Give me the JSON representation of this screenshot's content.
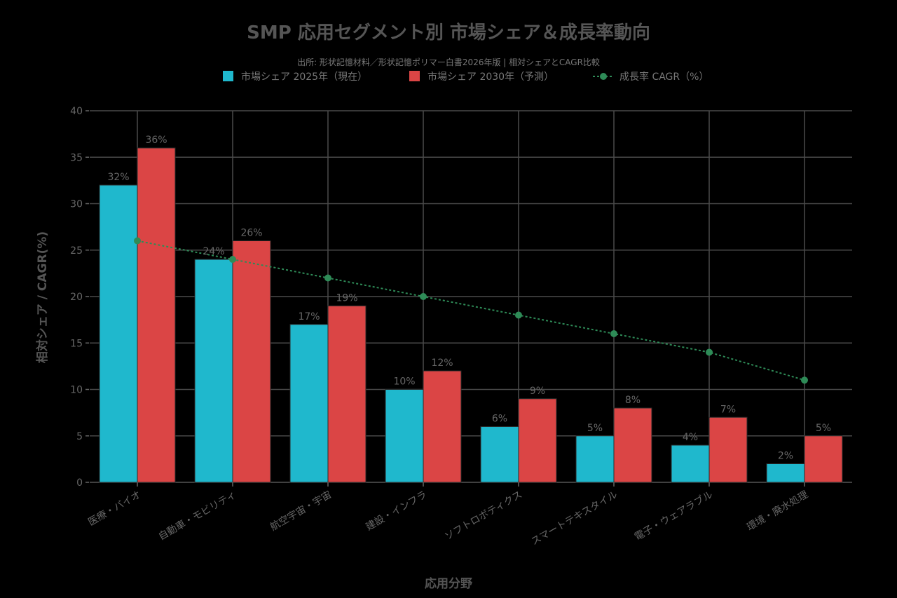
{
  "chart_data": {
    "type": "bar",
    "title": "SMP 応用セグメント別 市場シェア＆成長率動向",
    "subtitle": "出所: 形状記憶材料／形状記憶ポリマー白書2026年版 | 相対シェアとCAGR比較",
    "xlabel": "応用分野",
    "ylabel": "相対シェア / CAGR(%)",
    "ylim": [
      0,
      40
    ],
    "yticks": [
      0,
      5,
      10,
      15,
      20,
      25,
      30,
      35,
      40
    ],
    "grid": true,
    "legend_position": "top-center",
    "categories": [
      "医療・バイオ",
      "自動車・モビリティ",
      "航空宇宙・宇宙",
      "建設・インフラ",
      "ソフトロボティクス",
      "スマートテキスタイル",
      "電子・ウェアラブル",
      "環境・廃水処理"
    ],
    "series": [
      {
        "name": "市場シェア 2025年（現在）",
        "kind": "bar",
        "color": "#1fb8cd",
        "values": [
          32,
          24,
          17,
          10,
          6,
          5,
          4,
          2
        ],
        "labels": [
          "32%",
          "24%",
          "17%",
          "10%",
          "6%",
          "5%",
          "4%",
          "2%"
        ]
      },
      {
        "name": "市場シェア 2030年（予測）",
        "kind": "bar",
        "color": "#db4545",
        "values": [
          36,
          26,
          19,
          12,
          9,
          8,
          7,
          5
        ],
        "labels": [
          "36%",
          "26%",
          "19%",
          "12%",
          "9%",
          "8%",
          "7%",
          "5%"
        ]
      },
      {
        "name": "成長率 CAGR（%）",
        "kind": "line",
        "color": "#2e8b57",
        "values": [
          26,
          24,
          22,
          20,
          18,
          16,
          14,
          11
        ]
      }
    ]
  }
}
